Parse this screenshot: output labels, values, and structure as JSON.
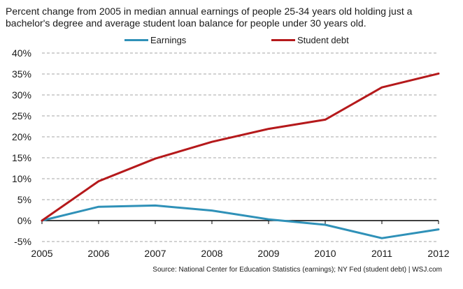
{
  "chart_data": {
    "type": "line",
    "title": "Percent change from 2005 in median annual earnings of people 25-34 years old holding just a bachelor's degree and average student loan balance for people under 30 years old.",
    "x": [
      "2005",
      "2006",
      "2007",
      "2008",
      "2009",
      "2010",
      "2011",
      "2012"
    ],
    "series": [
      {
        "name": "Earnings",
        "color": "#2f91b8",
        "values": [
          0,
          3.3,
          3.6,
          2.4,
          0.3,
          -1.0,
          -4.2,
          -2.1
        ]
      },
      {
        "name": "Student debt",
        "color": "#b5191b",
        "values": [
          0,
          9.4,
          14.8,
          18.8,
          21.9,
          24.1,
          31.8,
          35.1
        ]
      }
    ],
    "ylim": [
      -5,
      40
    ],
    "y_ticks": [
      -5,
      0,
      5,
      10,
      15,
      20,
      25,
      30,
      35,
      40
    ],
    "y_tick_format": "percent",
    "grid": "horizontal-dashed",
    "legend_position": "top",
    "source": "Source: National Center for Education Statistics (earnings); NY Fed (student debt)  |  WSJ.com"
  }
}
